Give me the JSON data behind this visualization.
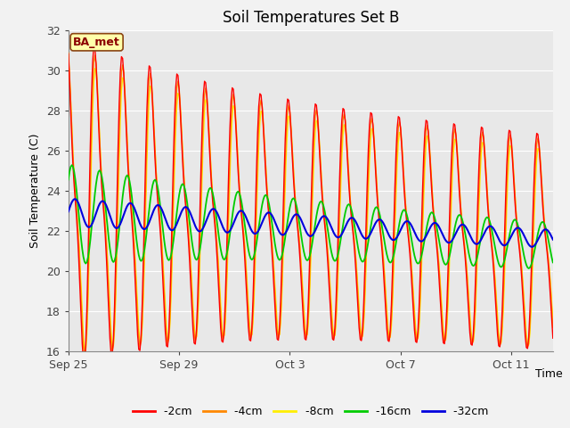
{
  "title": "Soil Temperatures Set B",
  "xlabel": "Time",
  "ylabel": "Soil Temperature (C)",
  "ylim": [
    16,
    32
  ],
  "xlim_days": [
    0,
    17.5
  ],
  "x_ticks": [
    0,
    4,
    8,
    12,
    16
  ],
  "x_tick_labels": [
    "Sep 25",
    "Sep 29",
    "Oct 3",
    "Oct 7",
    "Oct 11"
  ],
  "annotation": "BA_met",
  "colors": {
    "-2cm": "#ff0000",
    "-4cm": "#ff8800",
    "-8cm": "#ffee00",
    "-16cm": "#00cc00",
    "-32cm": "#0000dd"
  },
  "background_color": "#e8e8e8",
  "grid_color": "#ffffff",
  "title_fontsize": 12,
  "axis_fontsize": 9,
  "legend_fontsize": 9
}
